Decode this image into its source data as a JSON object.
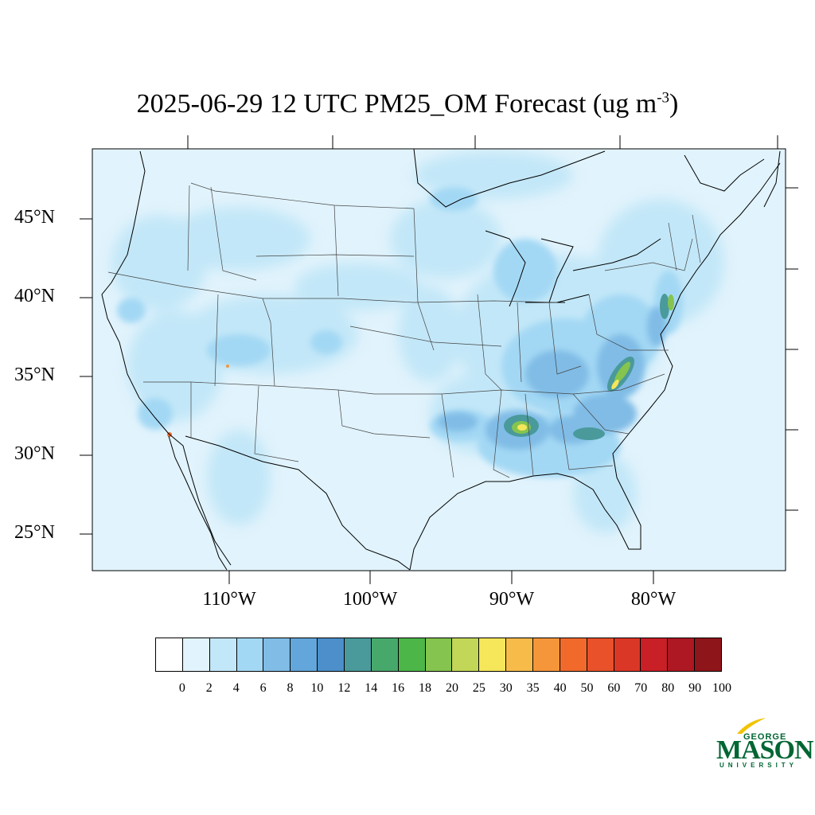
{
  "title": {
    "main": "2025-06-29 12 UTC PM25_OM Forecast (ug m",
    "superscript": "-3",
    "close": ")"
  },
  "lat_labels": [
    "45°N",
    "40°N",
    "35°N",
    "30°N",
    "25°N"
  ],
  "lon_labels": [
    "110°W",
    "100°W",
    "90°W",
    "80°W"
  ],
  "colorbar": {
    "ticks": [
      "0",
      "2",
      "4",
      "6",
      "8",
      "10",
      "12",
      "14",
      "16",
      "18",
      "20",
      "25",
      "30",
      "35",
      "40",
      "50",
      "60",
      "70",
      "80",
      "90",
      "100"
    ],
    "colors": [
      "#ffffff",
      "#e1f3fc",
      "#c2e7f8",
      "#a3d8f4",
      "#80bce6",
      "#63a6db",
      "#4c8fcb",
      "#4a9a9b",
      "#47a86c",
      "#4cb648",
      "#85c44e",
      "#c2d657",
      "#f5e65a",
      "#f6bb49",
      "#f6963b",
      "#f16a2b",
      "#e9512a",
      "#db3727",
      "#c91f26",
      "#ad1822",
      "#8e151a"
    ]
  },
  "map_colors": {
    "background": "#e1f3fc",
    "light": "#c2e7f8",
    "mid": "#a3d8f4",
    "dark": "#80bce6",
    "darker": "#63a6db",
    "high1": "#4a9a9b",
    "high2": "#85c44e",
    "high3": "#f5e65a"
  },
  "logo": {
    "george": "GEORGE",
    "mason": "MASON",
    "university": "UNIVERSITY"
  }
}
